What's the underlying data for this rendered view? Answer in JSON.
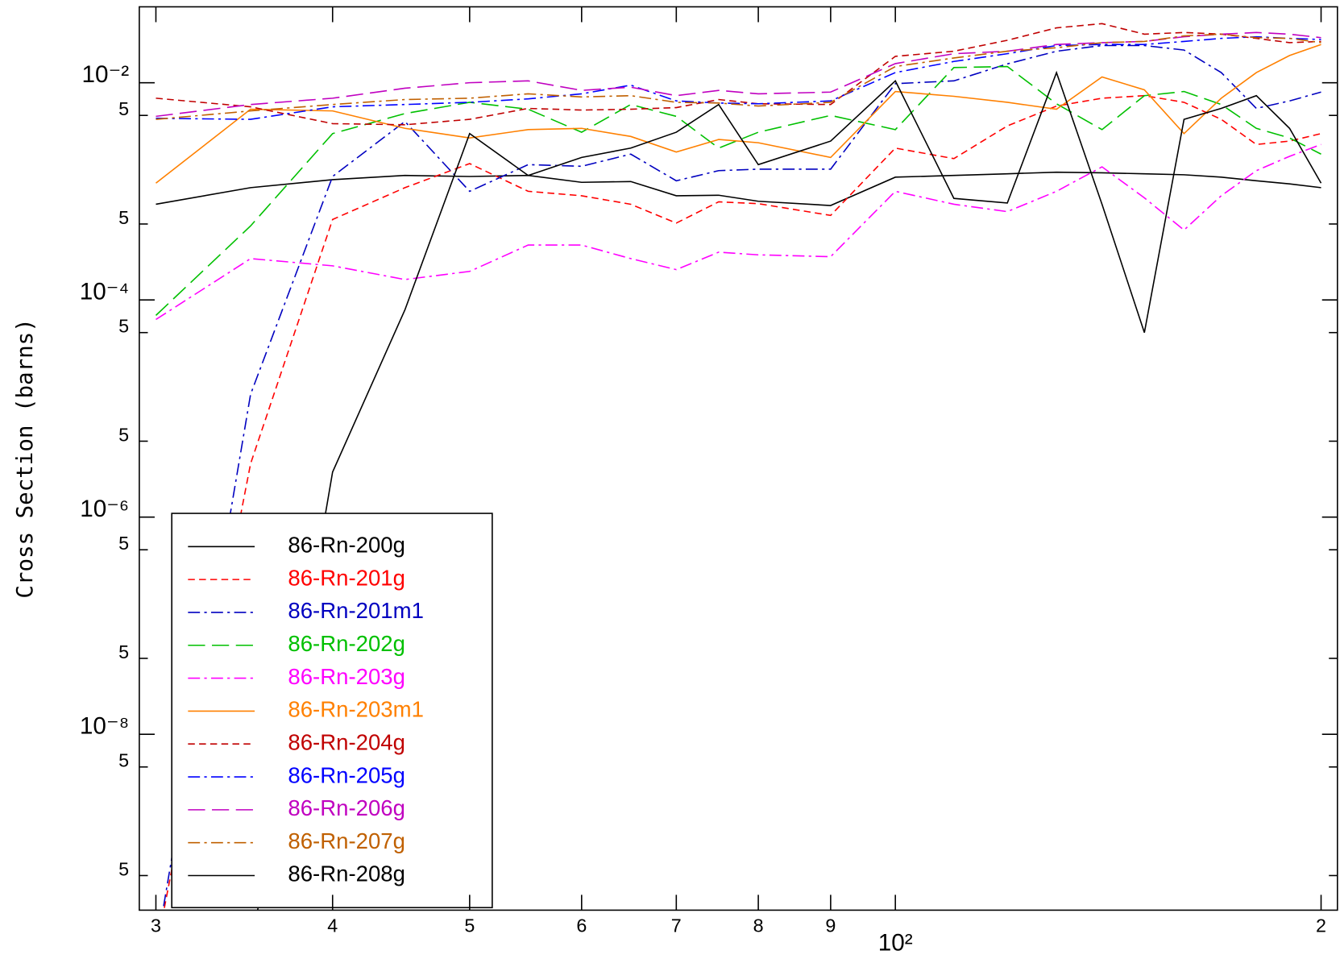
{
  "chart_data": {
    "type": "line",
    "xlog": true,
    "ylog": true,
    "legend": "lower left",
    "y_label": "Cross Section (barns)",
    "x": [
      30,
      35,
      40,
      45,
      50,
      55,
      60,
      65,
      70,
      75,
      80,
      90,
      100,
      110,
      120,
      130,
      140,
      150,
      160,
      170,
      180,
      190,
      200
    ],
    "xlim": [
      29.2,
      205.4
    ],
    "ylim": [
      2.4e-10,
      0.05
    ],
    "xticks": [
      {
        "value": 30,
        "label": "3"
      },
      {
        "value": 40,
        "label": "4"
      },
      {
        "value": 50,
        "label": "5"
      },
      {
        "value": 60,
        "label": "6"
      },
      {
        "value": 70,
        "label": "7"
      },
      {
        "value": 80,
        "label": "8"
      },
      {
        "value": 90,
        "label": "9"
      },
      {
        "value": 100,
        "label": "10²"
      },
      {
        "value": 200,
        "label": "2"
      }
    ],
    "yticks": [
      {
        "value": 0.01,
        "label": "10⁻²"
      },
      {
        "value": 0.005,
        "label": "5"
      },
      {
        "value": 0.0005,
        "label": "5"
      },
      {
        "value": 0.0001,
        "label": "10⁻⁴"
      },
      {
        "value": 5e-05,
        "label": "5"
      },
      {
        "value": 5e-06,
        "label": "5"
      },
      {
        "value": 1e-06,
        "label": "10⁻⁶"
      },
      {
        "value": 5e-07,
        "label": "5"
      },
      {
        "value": 5e-08,
        "label": "5"
      },
      {
        "value": 1e-08,
        "label": "10⁻⁸"
      },
      {
        "value": 5e-09,
        "label": "5"
      },
      {
        "value": 5e-10,
        "label": "5"
      }
    ],
    "series": [
      {
        "name": "86-Rn-200g",
        "color": "#000000",
        "style": "solid",
        "values": [
          0.00076,
          0.00108,
          0.00128,
          0.0014,
          0.00137,
          0.0014,
          0.00121,
          0.00123,
          0.00091,
          0.00092,
          0.00081,
          0.00074,
          0.00135,
          0.0014,
          0.00145,
          0.0015,
          0.00148,
          0.00145,
          0.00142,
          0.00135,
          0.00125,
          0.00117,
          0.00108
        ]
      },
      {
        "name": "86-Rn-201g",
        "color": "#ff0000",
        "style": "dash",
        "values": [
          1e-10,
          3.1e-06,
          0.00055,
          0.00108,
          0.0018,
          0.001,
          0.00091,
          0.00076,
          0.00051,
          0.0008,
          0.00077,
          0.0006,
          0.0025,
          0.002,
          0.004,
          0.0061,
          0.0072,
          0.0076,
          0.0066,
          0.0046,
          0.0027,
          0.0029,
          0.0034
        ]
      },
      {
        "name": "86-Rn-201m1",
        "color": "#0000c0",
        "style": "dashdot",
        "values": [
          1e-10,
          1.35e-05,
          0.00137,
          0.0044,
          0.001,
          0.00176,
          0.0017,
          0.0022,
          0.00125,
          0.00155,
          0.0016,
          0.0016,
          0.0098,
          0.0104,
          0.0149,
          0.0195,
          0.022,
          0.022,
          0.02,
          0.0124,
          0.0058,
          0.0068,
          0.0082
        ]
      },
      {
        "name": "86-Rn-202g",
        "color": "#00c000",
        "style": "longdash",
        "values": [
          7.2e-05,
          0.00048,
          0.0034,
          0.0052,
          0.0066,
          0.0057,
          0.0035,
          0.0063,
          0.0049,
          0.0025,
          0.0035,
          0.005,
          0.0037,
          0.0138,
          0.0141,
          0.0064,
          0.0037,
          0.0076,
          0.0083,
          0.0063,
          0.0038,
          0.0031,
          0.0022
        ]
      },
      {
        "name": "86-Rn-203g",
        "color": "#ff00ff",
        "style": "dashdot",
        "values": [
          6.6e-05,
          0.00024,
          0.000206,
          0.000154,
          0.000183,
          0.00032,
          0.00032,
          0.00024,
          0.00019,
          0.000275,
          0.00026,
          0.00025,
          0.001,
          0.00076,
          0.00065,
          0.001,
          0.00168,
          0.00087,
          0.00044,
          0.00091,
          0.00155,
          0.0021,
          0.0027
        ]
      },
      {
        "name": "86-Rn-203m1",
        "color": "#ff8000",
        "style": "solid",
        "values": [
          0.00119,
          0.0057,
          0.0055,
          0.0038,
          0.0031,
          0.0037,
          0.0038,
          0.0032,
          0.0023,
          0.003,
          0.0028,
          0.00205,
          0.0083,
          0.0075,
          0.0066,
          0.0057,
          0.0113,
          0.0086,
          0.0034,
          0.0072,
          0.0124,
          0.0178,
          0.0225
        ]
      },
      {
        "name": "86-Rn-204g",
        "color": "#c00000",
        "style": "dash",
        "values": [
          0.0072,
          0.006,
          0.0042,
          0.0041,
          0.0046,
          0.0058,
          0.0056,
          0.0057,
          0.0059,
          0.007,
          0.0064,
          0.0063,
          0.0175,
          0.0195,
          0.0246,
          0.032,
          0.035,
          0.028,
          0.029,
          0.028,
          0.0256,
          0.0234,
          0.024
        ]
      },
      {
        "name": "86-Rn-205g",
        "color": "#0000ff",
        "style": "dashdot",
        "values": [
          0.0047,
          0.0046,
          0.006,
          0.0063,
          0.0066,
          0.0071,
          0.0079,
          0.0095,
          0.0068,
          0.0065,
          0.0064,
          0.0068,
          0.0124,
          0.0157,
          0.0185,
          0.022,
          0.0225,
          0.0225,
          0.024,
          0.0256,
          0.0265,
          0.0256,
          0.025
        ]
      },
      {
        "name": "86-Rn-206g",
        "color": "#c000c0",
        "style": "longdash",
        "values": [
          0.0049,
          0.0063,
          0.0072,
          0.0089,
          0.01,
          0.0104,
          0.0085,
          0.0091,
          0.0076,
          0.0085,
          0.0079,
          0.0082,
          0.015,
          0.0185,
          0.0195,
          0.0225,
          0.0234,
          0.024,
          0.0265,
          0.028,
          0.029,
          0.028,
          0.026
        ]
      },
      {
        "name": "86-Rn-207g",
        "color": "#c06000",
        "style": "dashdot",
        "values": [
          0.0046,
          0.0055,
          0.0063,
          0.007,
          0.0072,
          0.0079,
          0.0074,
          0.0076,
          0.0066,
          0.0065,
          0.0061,
          0.0066,
          0.0141,
          0.0169,
          0.0195,
          0.021,
          0.0234,
          0.024,
          0.027,
          0.028,
          0.026,
          0.0256,
          0.0234
        ]
      },
      {
        "name": "86-Rn-208g",
        "color": "#000000",
        "style": "solid",
        "values": [
          null,
          1e-10,
          2.6e-06,
          8.1e-05,
          0.0034,
          0.0014,
          0.00205,
          0.0025,
          0.0035,
          0.0063,
          0.00176,
          0.0029,
          0.0104,
          0.00086,
          0.00078,
          0.0124,
          0.00076,
          5e-05,
          0.0046,
          0.0058,
          0.0076,
          0.0038,
          0.00119
        ]
      }
    ]
  }
}
